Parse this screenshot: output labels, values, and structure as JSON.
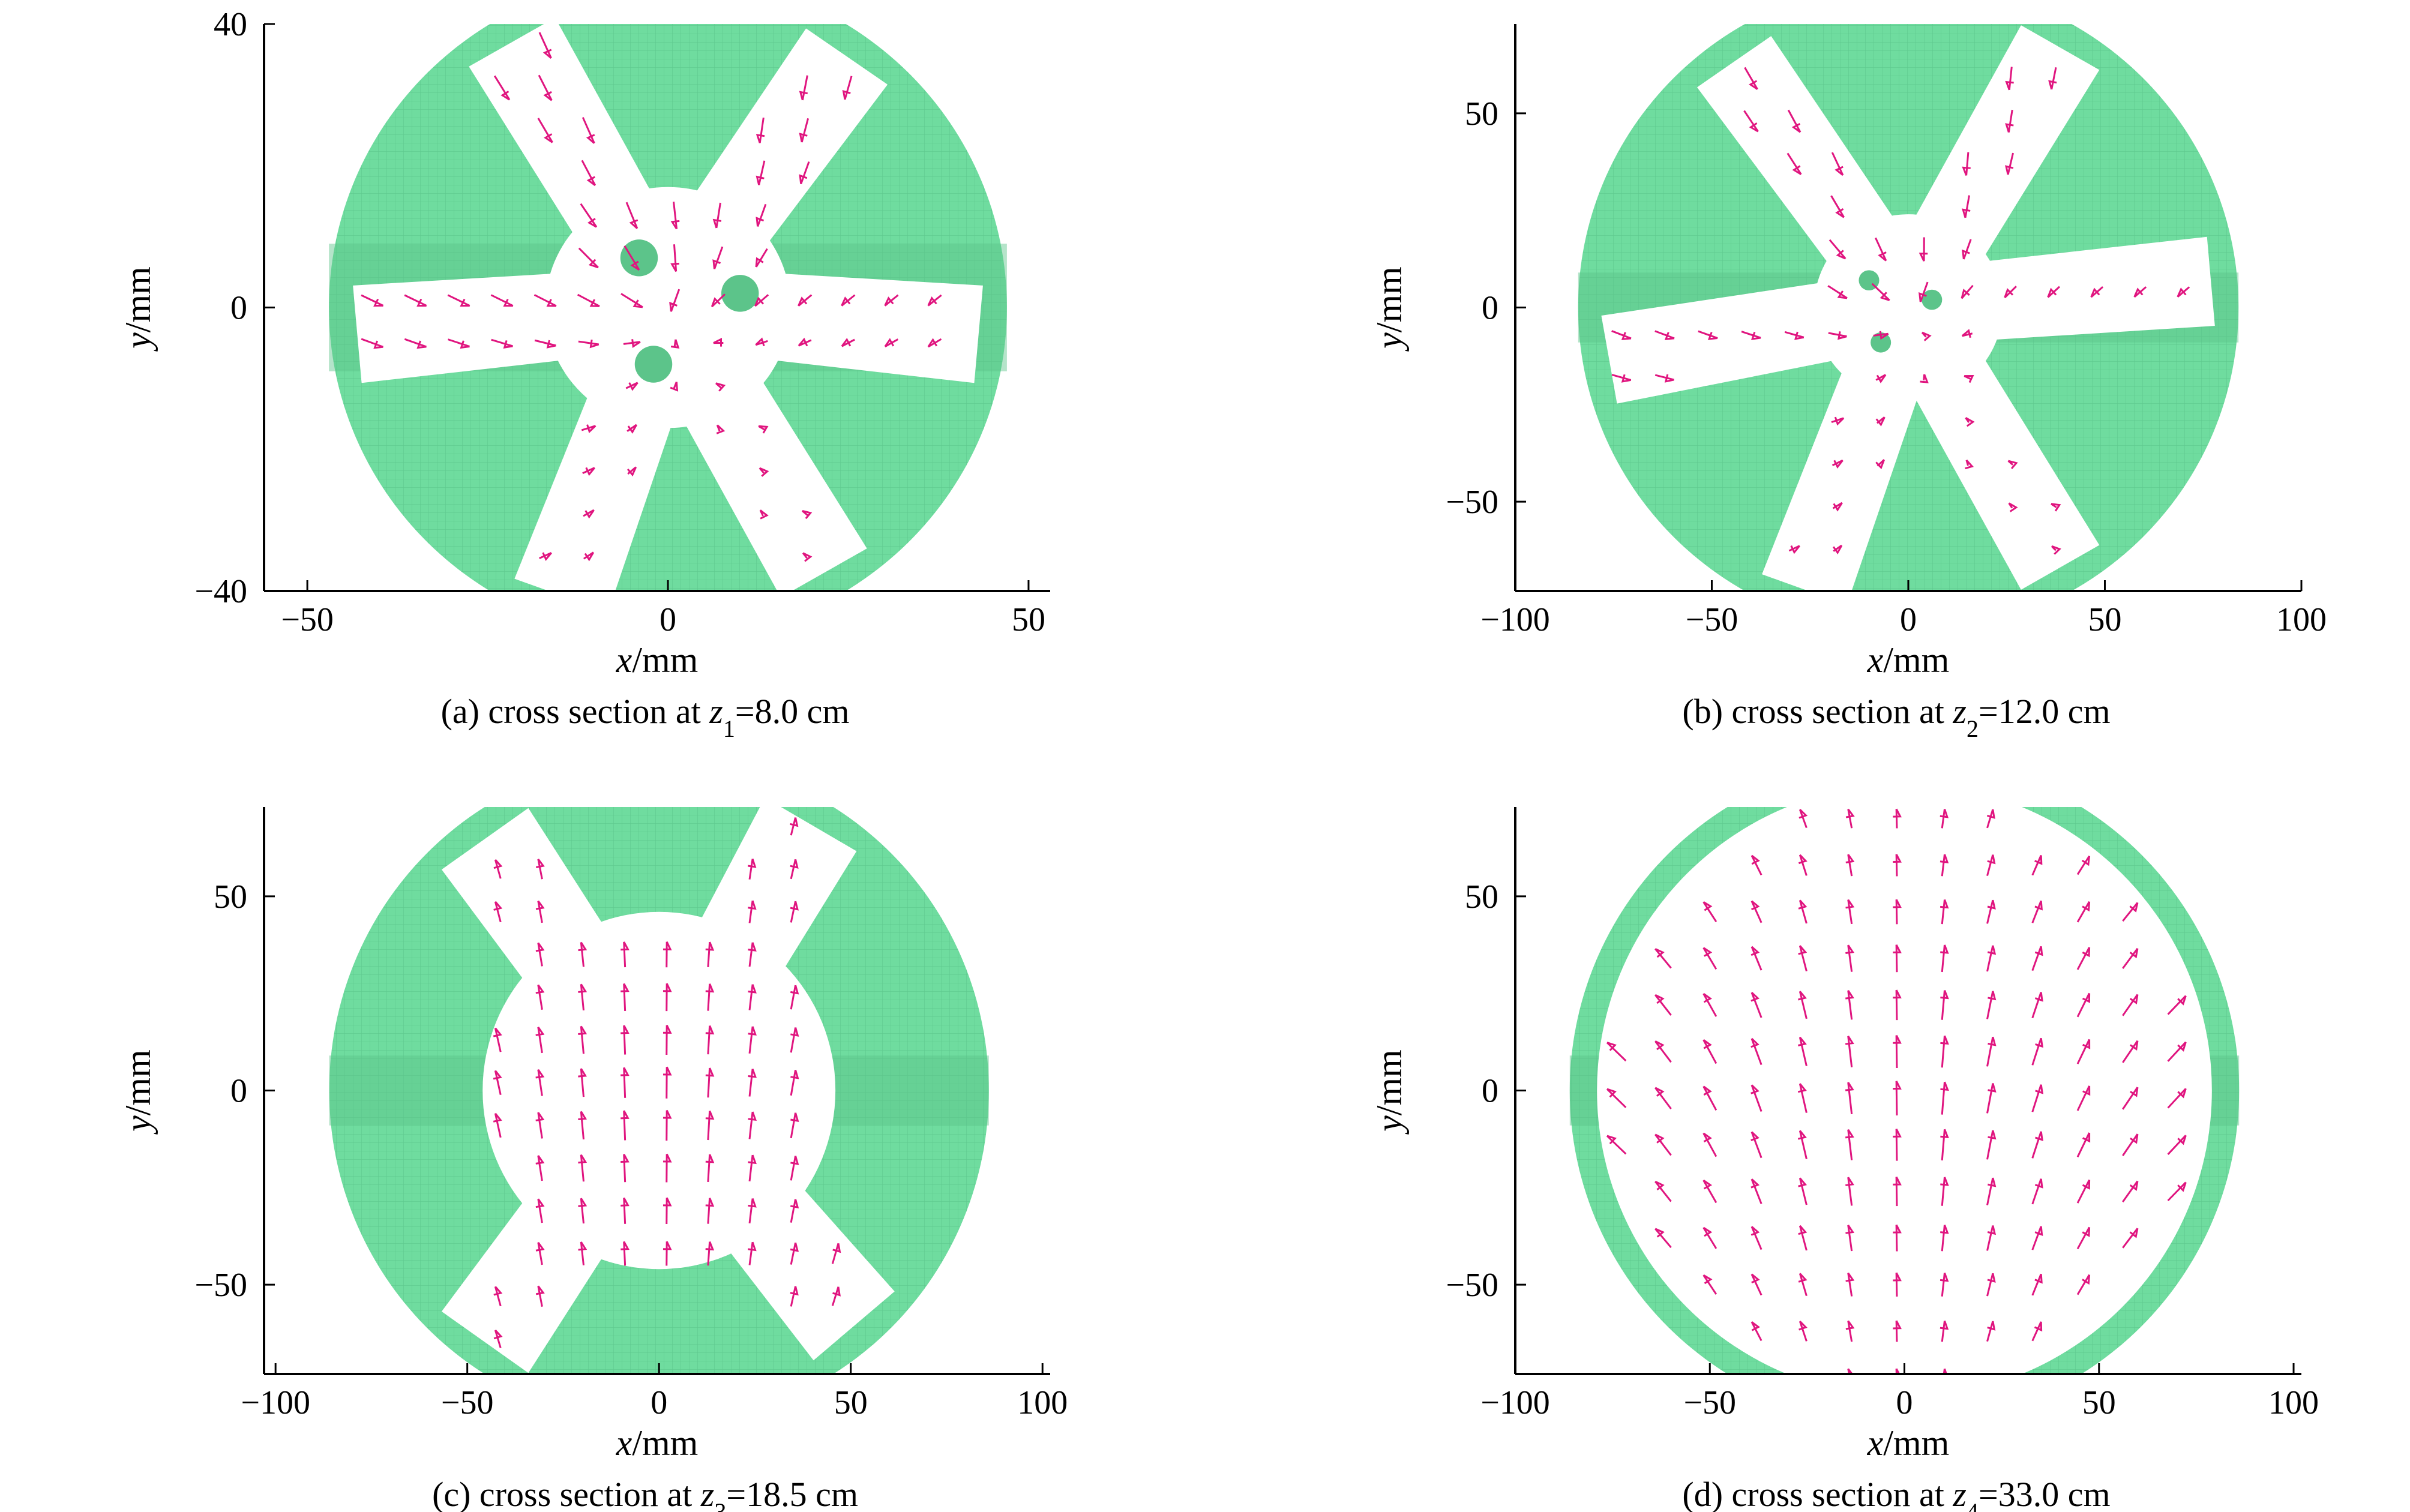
{
  "colors": {
    "solid": "#6fdc9f",
    "solid_dark": "#5cc48a",
    "grid_line": "#4fb77e",
    "arrow": "#e0157f",
    "background": "#ffffff"
  },
  "chart_data": [
    {
      "id": "a",
      "type": "vector-field",
      "caption": {
        "prefix": "(a) cross section at ",
        "var": "z",
        "sub": "1",
        "suffix": "=8.0 cm"
      },
      "xlabel": {
        "var": "x",
        "unit": "/mm"
      },
      "ylabel": {
        "var": "y",
        "unit": "/mm"
      },
      "xlim": [
        -56,
        53
      ],
      "ylim": [
        -40,
        40
      ],
      "xticks": [
        -50,
        0,
        50
      ],
      "xtick_labels": [
        "−50",
        "0",
        "50"
      ],
      "yticks": [
        -40,
        0,
        40
      ],
      "ytick_labels": [
        "−40",
        "0",
        "40"
      ],
      "domain": {
        "outer_radius": 47,
        "hub_radius": 17,
        "blade_angles_deg": [
          -5,
          55,
          120,
          185,
          250,
          300
        ],
        "blade_half_width": 6,
        "holes": [
          [
            -4,
            7
          ],
          [
            10,
            2
          ],
          [
            -2,
            -8
          ]
        ]
      },
      "flow": {
        "pattern": "inward",
        "spacing": 6,
        "scale": 0.9
      }
    },
    {
      "id": "b",
      "type": "vector-field",
      "caption": {
        "prefix": "(b) cross section at ",
        "var": "z",
        "sub": "2",
        "suffix": "=12.0 cm"
      },
      "xlabel": {
        "var": "x",
        "unit": "/mm"
      },
      "ylabel": {
        "var": "y",
        "unit": "/mm"
      },
      "xlim": [
        -100,
        100
      ],
      "ylim": [
        -73,
        73
      ],
      "xticks": [
        -100,
        -50,
        0,
        50,
        100
      ],
      "xtick_labels": [
        "−100",
        "−50",
        "0",
        "50",
        "100"
      ],
      "yticks": [
        -50,
        0,
        50
      ],
      "ytick_labels": [
        "−50",
        "0",
        "50"
      ],
      "domain": {
        "outer_radius": 84,
        "hub_radius": 24,
        "blade_angles_deg": [
          5,
          60,
          125,
          190,
          250,
          300
        ],
        "blade_half_width": 10,
        "holes": [
          [
            -10,
            7
          ],
          [
            6,
            2
          ],
          [
            -7,
            -9
          ]
        ]
      },
      "flow": {
        "pattern": "inward",
        "spacing": 11,
        "scale": 0.8
      }
    },
    {
      "id": "c",
      "type": "vector-field",
      "caption": {
        "prefix": "(c) cross section at ",
        "var": "z",
        "sub": "3",
        "suffix": "=18.5 cm"
      },
      "xlabel": {
        "var": "x",
        "unit": "/mm"
      },
      "ylabel": {
        "var": "y",
        "unit": "/mm"
      },
      "xlim": [
        -103,
        102
      ],
      "ylim": [
        -73,
        73
      ],
      "xticks": [
        -100,
        -50,
        0,
        50,
        100
      ],
      "xtick_labels": [
        "−100",
        "−50",
        "0",
        "50",
        "100"
      ],
      "yticks": [
        -50,
        0,
        50
      ],
      "ytick_labels": [
        "−50",
        "0",
        "50"
      ],
      "domain": {
        "outer_radius": 86,
        "hub_radius": 46,
        "blade_angles_deg": [
          60,
          125,
          235,
          310
        ],
        "blade_half_width": 12,
        "holes": []
      },
      "flow": {
        "pattern": "upward",
        "spacing": 11,
        "scale": 1.0
      }
    },
    {
      "id": "d",
      "type": "vector-field",
      "caption": {
        "prefix": "(d) cross section at ",
        "var": "z",
        "sub": "4",
        "suffix": "=33.0 cm"
      },
      "xlabel": {
        "var": "x",
        "unit": "/mm"
      },
      "ylabel": {
        "var": "y",
        "unit": "/mm"
      },
      "xlim": [
        -100,
        102
      ],
      "ylim": [
        -73,
        73
      ],
      "xticks": [
        -100,
        -50,
        0,
        50,
        100
      ],
      "xtick_labels": [
        "−100",
        "−50",
        "0",
        "50",
        "100"
      ],
      "yticks": [
        -50,
        0,
        50
      ],
      "ytick_labels": [
        "−50",
        "0",
        "50"
      ],
      "domain": {
        "outer_radius": 86,
        "inner_radius": 79,
        "holes": []
      },
      "flow": {
        "pattern": "upward-spread",
        "spacing": 12,
        "scale": 1.0
      }
    }
  ]
}
